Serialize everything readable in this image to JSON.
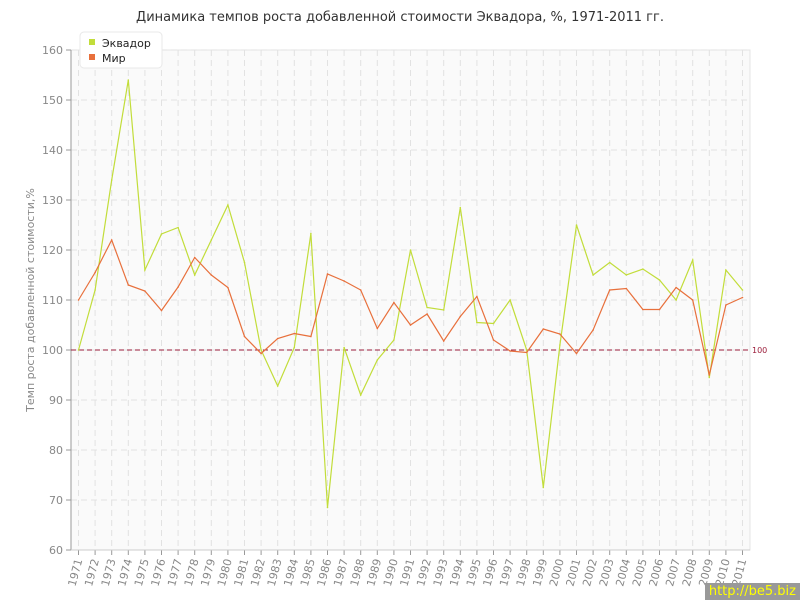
{
  "chart_data": {
    "type": "line",
    "title": "Динамика темпов роста добавленной стоимости Эквадора, %, 1971-2011 гг.",
    "ylabel": "Темп роста добавленной стоимости,%",
    "xlabel": "",
    "ylim": [
      60,
      160
    ],
    "yticks": [
      60,
      70,
      80,
      90,
      100,
      110,
      120,
      130,
      140,
      150,
      160
    ],
    "grid": true,
    "legend": "top-left",
    "x": [
      1971,
      1972,
      1973,
      1974,
      1975,
      1976,
      1977,
      1978,
      1979,
      1980,
      1981,
      1982,
      1983,
      1984,
      1985,
      1986,
      1987,
      1988,
      1989,
      1990,
      1991,
      1992,
      1993,
      1994,
      1995,
      1996,
      1997,
      1998,
      1999,
      2000,
      2001,
      2002,
      2003,
      2004,
      2005,
      2006,
      2007,
      2008,
      2009,
      2010,
      2011
    ],
    "series": [
      {
        "name": "Эквадор",
        "color": "#c2dd3a",
        "values": [
          100,
          112,
          134,
          154,
          116,
          123.2,
          124.5,
          115,
          122,
          129,
          117.5,
          100,
          92.8,
          100.5,
          123.3,
          68.5,
          100.5,
          91,
          98,
          102,
          120,
          108.5,
          108,
          128.5,
          105.5,
          105.3,
          110,
          100,
          72.5,
          101,
          125,
          115,
          117.5,
          115,
          116.2,
          114,
          110,
          118,
          94.5,
          116,
          112
        ]
      },
      {
        "name": "Мир",
        "color": "#e8703c",
        "values": [
          110,
          115.5,
          122,
          113,
          111.8,
          107.9,
          112.6,
          118.5,
          115,
          112.5,
          102.7,
          99.3,
          102.3,
          103.3,
          102.7,
          115.2,
          113.8,
          112,
          104.3,
          109.5,
          105,
          107.2,
          101.8,
          106.7,
          110.7,
          102,
          99.8,
          99.5,
          104.2,
          103.2,
          99.3,
          104,
          112,
          112.3,
          108.1,
          108.1,
          112.5,
          110,
          95,
          109,
          110.5
        ]
      }
    ],
    "reference_line": {
      "value": 100,
      "label": "100",
      "color": "#9b1c3a"
    }
  },
  "watermark": "http://be5.biz"
}
